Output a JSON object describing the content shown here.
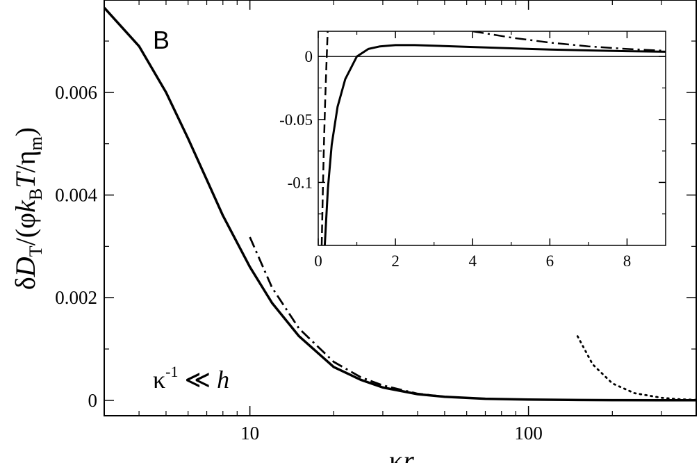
{
  "chart_data": {
    "type": "line",
    "panel_label": "B",
    "annotation": {
      "symbol": "κ",
      "superscript": "-1",
      "relation": " ≪ ",
      "var": "h"
    },
    "main": {
      "xscale": "log",
      "xlim": [
        3,
        400
      ],
      "ylim": [
        -0.0003,
        0.0078
      ],
      "xticks": [
        10,
        100
      ],
      "xtick_labels": [
        "10",
        "100"
      ],
      "yticks": [
        0,
        0.002,
        0.004,
        0.006
      ],
      "ytick_labels": [
        "0",
        "0.002",
        "0.004",
        "0.006"
      ],
      "xlabel_parts": {
        "a": "κ",
        "b": "r"
      },
      "ylabel_parts": {
        "prefix": "δ",
        "D": "D",
        "Dsub": "T",
        "mid": "/(φ",
        "k": "k",
        "ksub": "B",
        "T": "T",
        "slash": "/",
        "eta": "η",
        "etasub": "m",
        "close": ")"
      },
      "series": [
        {
          "style": "solid",
          "x": [
            3,
            4,
            5,
            6,
            7,
            8,
            10,
            12,
            15,
            20,
            25,
            30,
            40,
            50,
            70,
            100,
            150,
            200,
            300,
            400
          ],
          "y": [
            0.00765,
            0.0069,
            0.006,
            0.0051,
            0.0043,
            0.0036,
            0.0026,
            0.0019,
            0.00125,
            0.00065,
            0.0004,
            0.00025,
            0.00012,
            7e-05,
            3e-05,
            1.5e-05,
            6e-06,
            3e-06,
            1e-06,
            5e-07
          ]
        },
        {
          "style": "dashdot",
          "x": [
            10,
            12,
            15,
            20,
            25,
            30,
            40,
            50
          ],
          "y": [
            0.00318,
            0.0022,
            0.0014,
            0.00075,
            0.00045,
            0.00029,
            0.00013,
            7e-05
          ]
        },
        {
          "style": "dotted",
          "x": [
            150,
            170,
            200,
            240,
            300,
            350,
            400
          ],
          "y": [
            0.00125,
            0.0007,
            0.00033,
            0.00014,
            5e-05,
            2e-05,
            1e-05
          ]
        }
      ]
    },
    "inset": {
      "xscale": "linear",
      "xlim": [
        0,
        9
      ],
      "ylim": [
        -0.15,
        0.02
      ],
      "xticks": [
        0,
        2,
        4,
        6,
        8
      ],
      "xtick_labels": [
        "0",
        "2",
        "4",
        "6",
        "8"
      ],
      "yticks": [
        0,
        -0.05,
        -0.1
      ],
      "ytick_labels": [
        "0",
        "-0.05",
        "-0.1"
      ],
      "series": [
        {
          "style": "solid",
          "x": [
            0.17,
            0.25,
            0.35,
            0.5,
            0.7,
            1.0,
            1.3,
            1.6,
            2.0,
            2.5,
            3.0,
            4.0,
            5.0,
            6.0,
            7.0,
            8.0,
            9.0
          ],
          "y": [
            -0.15,
            -0.105,
            -0.07,
            -0.04,
            -0.018,
            0.0,
            0.006,
            0.008,
            0.009,
            0.009,
            0.0085,
            0.0075,
            0.0065,
            0.0055,
            0.0048,
            0.0042,
            0.0038
          ]
        },
        {
          "style": "dashed",
          "x": [
            0.09,
            0.12,
            0.15,
            0.18,
            0.21,
            0.245
          ],
          "y": [
            -0.15,
            -0.105,
            -0.068,
            -0.035,
            -0.008,
            0.02
          ]
        },
        {
          "style": "dashdot",
          "x": [
            4.0,
            4.5,
            5.0,
            6.0,
            7.0,
            8.0,
            9.0
          ],
          "y": [
            0.02,
            0.0175,
            0.015,
            0.011,
            0.008,
            0.006,
            0.0045
          ]
        }
      ]
    }
  }
}
